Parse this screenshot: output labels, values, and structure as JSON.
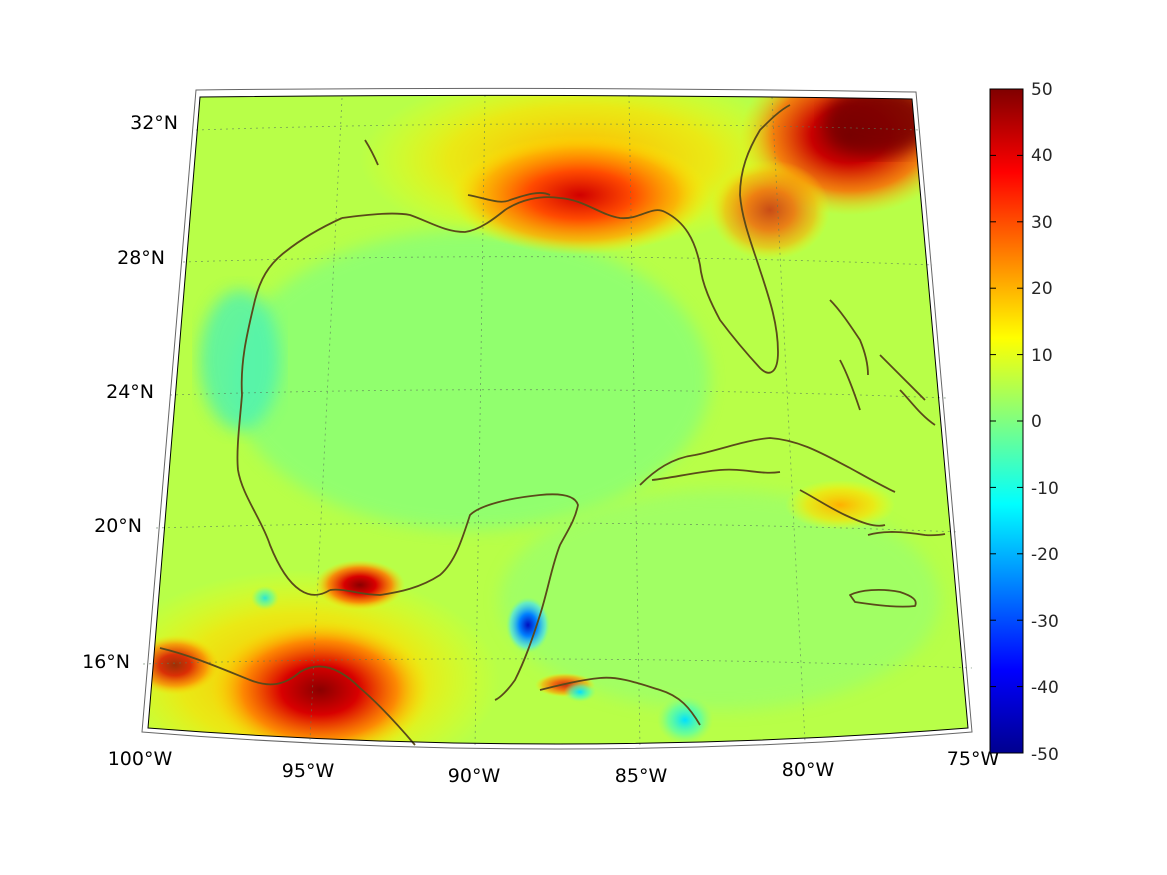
{
  "map": {
    "projection": "conic",
    "region": "Gulf of Mexico and Caribbean",
    "lon_labels": [
      "100°W",
      "95°W",
      "90°W",
      "85°W",
      "80°W",
      "75°W"
    ],
    "lat_labels": [
      "32°N",
      "28°N",
      "24°N",
      "20°N",
      "16°N"
    ],
    "coastline_color": "#5a4a1a",
    "graticule": "dotted"
  },
  "colorbar": {
    "colormap": "jet",
    "min": -50,
    "max": 50,
    "tick_labels": [
      "50",
      "40",
      "30",
      "20",
      "10",
      "0",
      "-10",
      "-20",
      "-30",
      "-40",
      "-50"
    ]
  }
}
